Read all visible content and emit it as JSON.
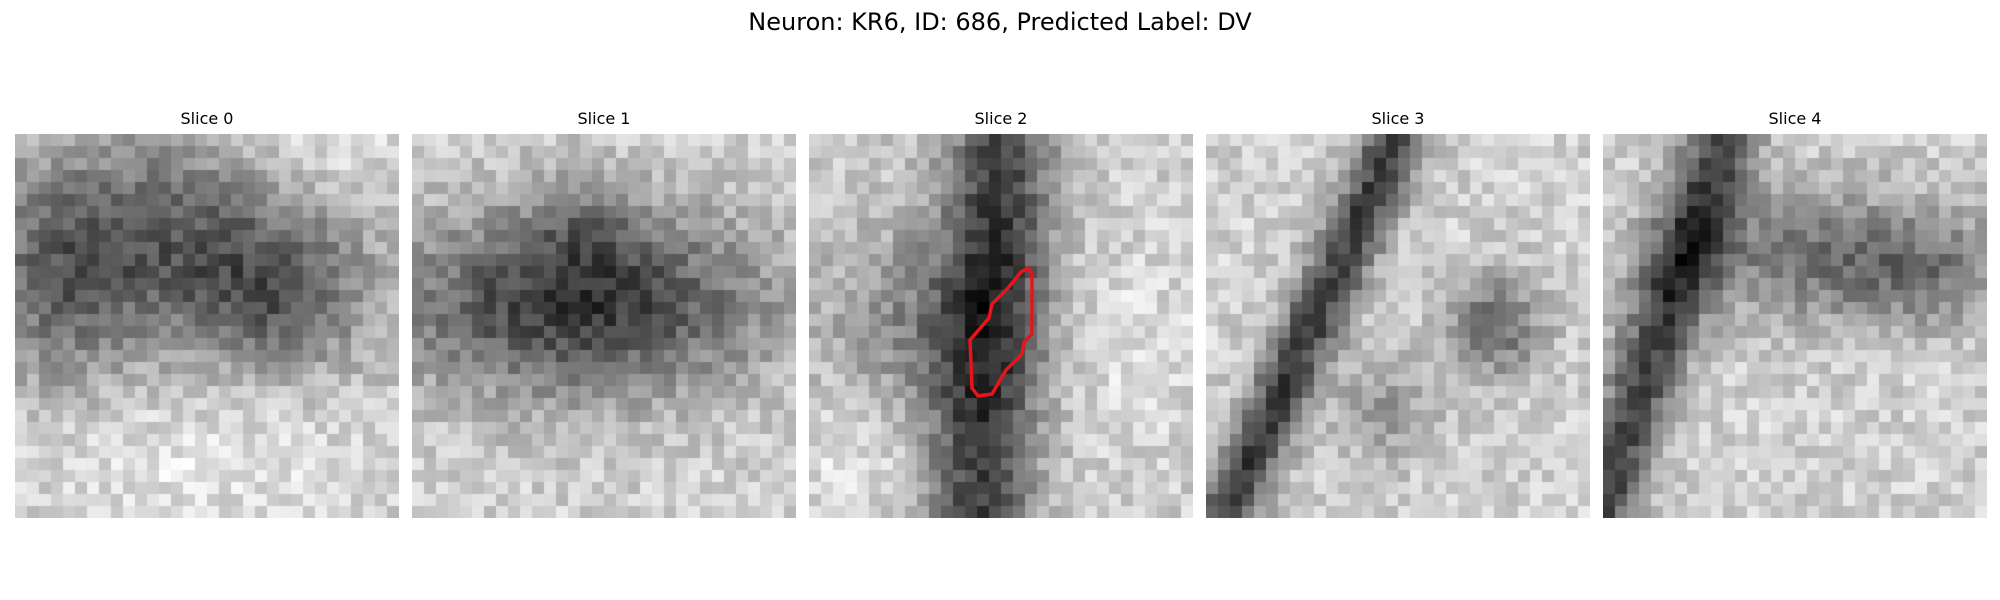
{
  "figure": {
    "title": "Neuron: KR6, ID: 686, Predicted Label: DV"
  },
  "colors": {
    "background": "#ffffff",
    "outline": "#e8141b"
  },
  "panels": [
    {
      "title": "Slice 0",
      "pattern": "dark-upper-blob",
      "has_outline": false
    },
    {
      "title": "Slice 1",
      "pattern": "dark-center-body",
      "has_outline": false
    },
    {
      "title": "Slice 2",
      "pattern": "vertical-dark-stem",
      "has_outline": true
    },
    {
      "title": "Slice 3",
      "pattern": "diagonal-dark-band",
      "has_outline": false
    },
    {
      "title": "Slice 4",
      "pattern": "diagonal-left-band",
      "has_outline": false
    }
  ]
}
